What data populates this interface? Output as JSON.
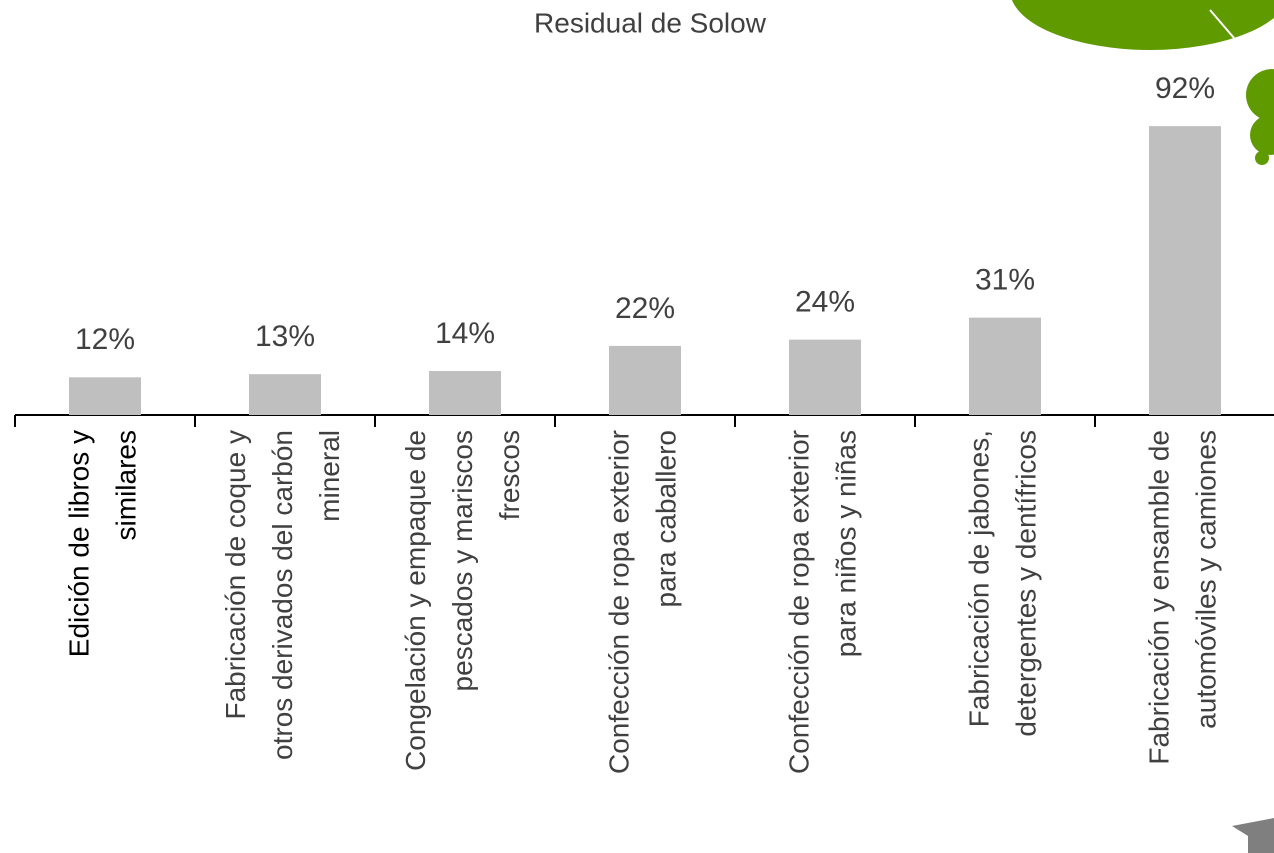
{
  "chart_data": {
    "type": "bar",
    "title": "Residual de Solow",
    "categories": [
      "Edición de libros y similares",
      "Fabricación de coque y otros derivados del carbón mineral",
      "Congelación y empaque de pescados y mariscos frescos",
      "Confección de ropa exterior para caballero",
      "Confección de ropa exterior para niños y niñas",
      "Fabricación de jabones, detergentes y dentífricos",
      "Fabricación y ensamble de automóviles y camiones"
    ],
    "values": [
      12,
      13,
      14,
      22,
      24,
      31,
      92
    ],
    "value_labels": [
      "12%",
      "13%",
      "14%",
      "22%",
      "24%",
      "31%",
      "92%"
    ],
    "color": "#bfbfbf"
  }
}
